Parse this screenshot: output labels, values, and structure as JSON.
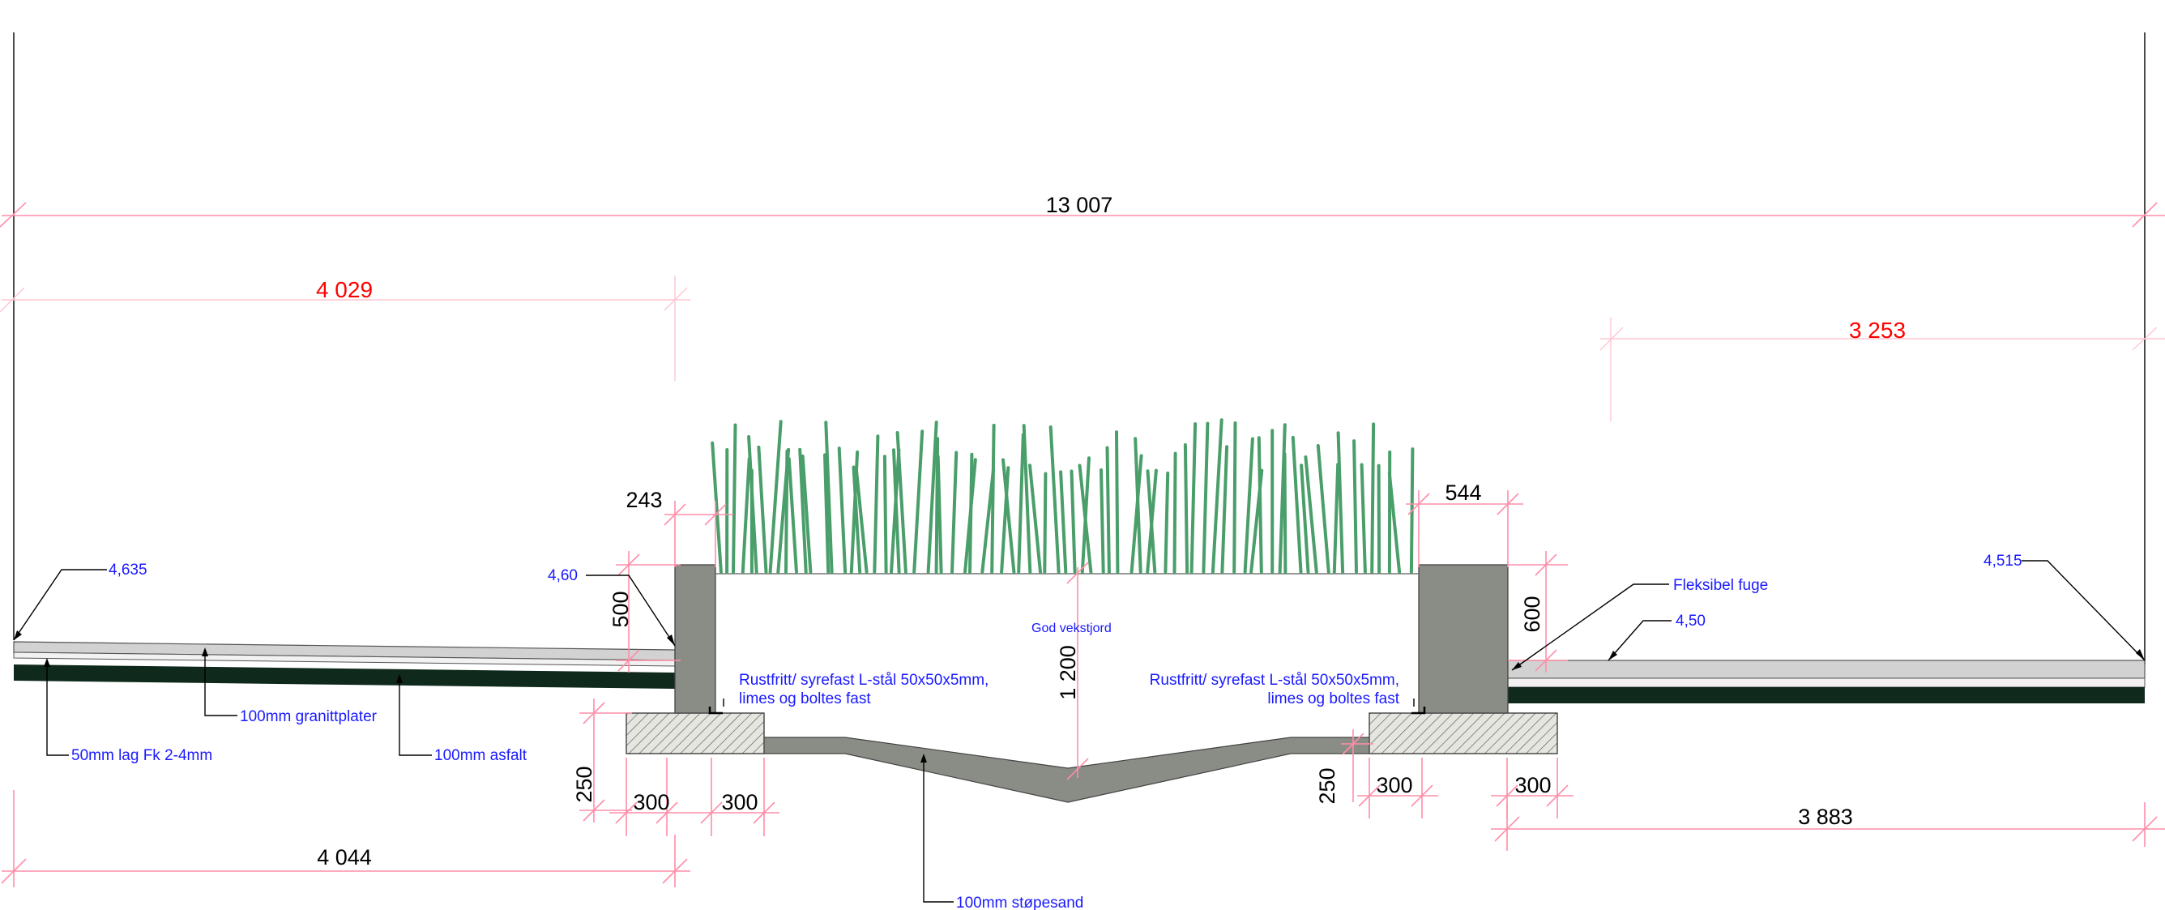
{
  "dimensions": {
    "overall": "13 007",
    "left_paving_width": "4 029",
    "right_paving_width": "3 253",
    "left_wall_top": "243",
    "right_wall_top": "544",
    "left_wall_height": "500",
    "bed_depth": "1 200",
    "right_wall_height": "600",
    "left_footing_height": "250",
    "right_footing_height": "250",
    "left_footing_out": "300",
    "left_footing_in": "300",
    "right_footing_in": "300",
    "right_footing_out": "300",
    "left_bottom": "4 044",
    "right_bottom": "3 883"
  },
  "levels": {
    "left_edge": "4,635",
    "left_wall": "4,60",
    "right_paving": "4,50",
    "right_edge": "4,515"
  },
  "notes": {
    "growing_soil": "God vekstjord",
    "steel_left_line1": "Rustfritt/ syrefast L-stål 50x50x5mm,",
    "steel_left_line2": "limes og boltes fast",
    "steel_right_line1": "Rustfritt/ syrefast L-stål 50x50x5mm,",
    "steel_right_line2": "limes og boltes fast",
    "flexible_joint": "Fleksibel fuge",
    "granite": "100mm granittplater",
    "gravel": "50mm lag  Fk 2-4mm",
    "asphalt": "100mm asfalt",
    "casting_sand": "100mm støpesand"
  },
  "colors": {
    "dimension_line": "#ff8ea8",
    "annotation_text": "#1a1aff",
    "highlight_dimension": "#ff0000",
    "concrete_wall": "#8a8c86",
    "asphalt": "#0f2a1c",
    "granite": "#d2d2d2",
    "grass": "#4a9e6a"
  }
}
